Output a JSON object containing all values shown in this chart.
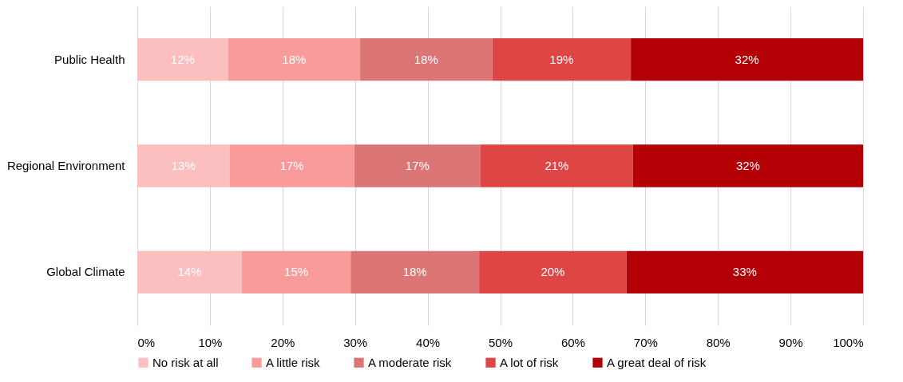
{
  "chart_data": {
    "type": "bar",
    "orientation": "horizontal",
    "stacked": true,
    "categories": [
      "Public Health",
      "Regional Environment",
      "Global Climate"
    ],
    "series": [
      {
        "name": "No risk at all",
        "color": "#fbbfbf",
        "values": [
          12.5,
          12.7,
          14.4
        ],
        "value_labels": [
          "12%",
          "13%",
          "14%"
        ]
      },
      {
        "name": "A little risk",
        "color": "#f99b9b",
        "values": [
          18.2,
          17.2,
          15.0
        ],
        "value_labels": [
          "18%",
          "17%",
          "15%"
        ]
      },
      {
        "name": "A moderate risk",
        "color": "#dc7576",
        "values": [
          18.2,
          17.4,
          17.7
        ],
        "value_labels": [
          "18%",
          "17%",
          "18%"
        ]
      },
      {
        "name": "A lot of risk",
        "color": "#de4545",
        "values": [
          19.1,
          21.0,
          20.3
        ],
        "value_labels": [
          "19%",
          "21%",
          "20%"
        ]
      },
      {
        "name": "A great deal of risk",
        "color": "#b30006",
        "values": [
          32.0,
          31.7,
          32.6
        ],
        "value_labels": [
          "32%",
          "32%",
          "33%"
        ]
      }
    ],
    "xlim": [
      0,
      100
    ],
    "xticks": [
      {
        "value": 0,
        "label": "0%"
      },
      {
        "value": 10,
        "label": "10%"
      },
      {
        "value": 20,
        "label": "20%"
      },
      {
        "value": 30,
        "label": "30%"
      },
      {
        "value": 40,
        "label": "40%"
      },
      {
        "value": 50,
        "label": "50%"
      },
      {
        "value": 60,
        "label": "60%"
      },
      {
        "value": 70,
        "label": "70%"
      },
      {
        "value": 80,
        "label": "80%"
      },
      {
        "value": 90,
        "label": "90%"
      },
      {
        "value": 100,
        "label": "100%"
      }
    ],
    "grid": "x",
    "legend": "bottom"
  }
}
